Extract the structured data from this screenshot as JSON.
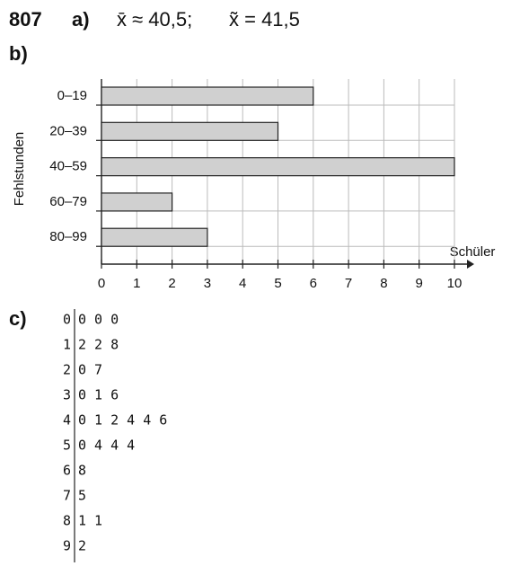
{
  "header": {
    "number": "807",
    "a_label": "a)",
    "mean": "x̄ ≈ 40,5;",
    "median": "x̃ = 41,5"
  },
  "b_label": "b)",
  "chart_data": {
    "type": "bar",
    "orientation": "horizontal",
    "ylabel": "Fehlstunden",
    "xlabel": "Schüler",
    "categories": [
      "0–19",
      "20–39",
      "40–59",
      "60–79",
      "80–99"
    ],
    "values": [
      6,
      5,
      10,
      2,
      3
    ],
    "color": "#d0d0d0",
    "xlim": [
      0,
      10
    ],
    "xticks": [
      0,
      1,
      2,
      3,
      4,
      5,
      6,
      7,
      8,
      9,
      10
    ],
    "grid": true
  },
  "c_label": "c)",
  "stem_leaf": {
    "rows": [
      [
        "0",
        "0 0 0"
      ],
      [
        "1",
        "2 2 8"
      ],
      [
        "2",
        "0 7"
      ],
      [
        "3",
        "0 1 6"
      ],
      [
        "4",
        "0 1 2 4 4 6"
      ],
      [
        "5",
        "0 4 4 4"
      ],
      [
        "6",
        "8"
      ],
      [
        "7",
        "5"
      ],
      [
        "8",
        "1 1"
      ],
      [
        "9",
        "2"
      ]
    ]
  }
}
